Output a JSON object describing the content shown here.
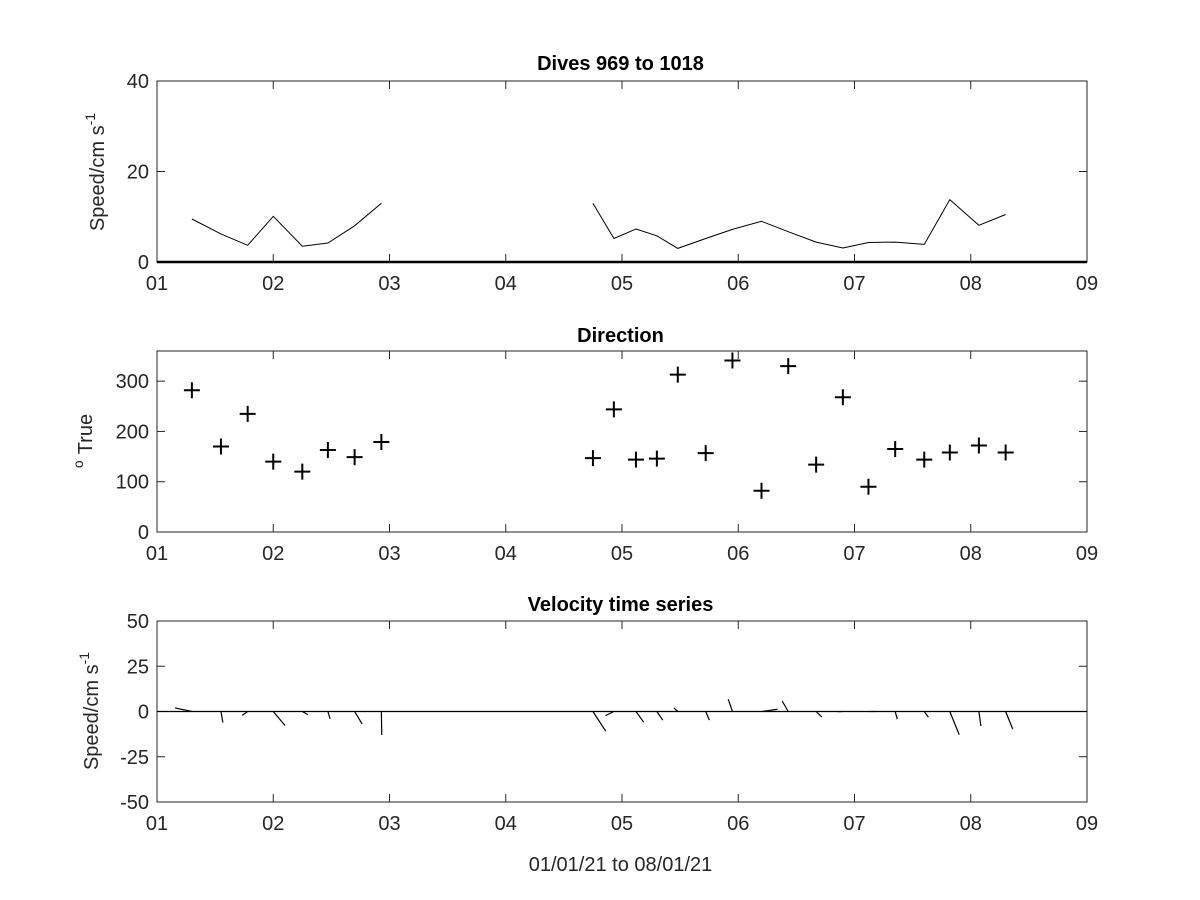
{
  "figure": {
    "xlabel": "01/01/21 to 08/01/21",
    "tick_labels": [
      "01",
      "02",
      "03",
      "04",
      "05",
      "06",
      "07",
      "08",
      "09"
    ]
  },
  "chart_data": [
    {
      "type": "line",
      "title": "Dives 969 to 1018",
      "ylabel": "Speed/cm s",
      "ylabel_superscript": "-1",
      "xlim": [
        1,
        9
      ],
      "ylim": [
        0,
        40
      ],
      "yticks": [
        "0",
        "20",
        "40"
      ],
      "grid": false,
      "series": [
        {
          "segments": [
            {
              "x": [
                1.3,
                1.55,
                1.78,
                2.0,
                2.25,
                2.47,
                2.7,
                2.93
              ],
              "y": [
                9.5,
                6.2,
                3.7,
                10.1,
                3.5,
                4.2,
                8.0,
                13.0
              ]
            },
            {
              "x": [
                4.75,
                4.93,
                5.12,
                5.3,
                5.48,
                5.72,
                5.95,
                6.2,
                6.43,
                6.67,
                6.9,
                7.12,
                7.35,
                7.6,
                7.82,
                8.07,
                8.3
              ],
              "y": [
                13.0,
                5.2,
                7.3,
                5.8,
                3.0,
                5.2,
                7.2,
                9.0,
                6.7,
                4.4,
                3.1,
                4.3,
                4.4,
                3.9,
                13.8,
                8.1,
                10.5
              ]
            }
          ]
        }
      ]
    },
    {
      "type": "scatter",
      "title": "Direction",
      "ylabel": "True",
      "ylabel_superscript": "o",
      "xlim": [
        1,
        9
      ],
      "ylim": [
        0,
        360
      ],
      "yticks": [
        "0",
        "100",
        "200",
        "300"
      ],
      "marker": "+",
      "grid": false,
      "x": [
        1.3,
        1.55,
        1.78,
        2.0,
        2.25,
        2.47,
        2.7,
        2.93,
        4.75,
        4.93,
        5.12,
        5.3,
        5.48,
        5.72,
        5.95,
        6.2,
        6.43,
        6.67,
        6.9,
        7.12,
        7.35,
        7.6,
        7.82,
        8.07,
        8.3
      ],
      "y": [
        282,
        170,
        235,
        140,
        120,
        163,
        149,
        179,
        147,
        244,
        144,
        146,
        313,
        157,
        341,
        82,
        330,
        134,
        268,
        90,
        165,
        144,
        158,
        172,
        158
      ]
    },
    {
      "type": "quiver",
      "title": "Velocity time series",
      "ylabel": "Speed/cm s",
      "ylabel_superscript": "-1",
      "xlim": [
        1,
        9
      ],
      "ylim": [
        -50,
        50
      ],
      "yticks": [
        "-50",
        "-25",
        "0",
        "25",
        "50"
      ],
      "grid": false,
      "x": [
        1.3,
        1.55,
        1.78,
        2.0,
        2.25,
        2.47,
        2.7,
        2.93,
        4.75,
        4.93,
        5.12,
        5.3,
        5.48,
        5.72,
        5.95,
        6.2,
        6.43,
        6.67,
        6.9,
        7.12,
        7.35,
        7.6,
        7.82,
        8.07,
        8.3
      ],
      "speed": [
        9.5,
        6.2,
        3.7,
        10.1,
        3.5,
        4.2,
        8.0,
        13.0,
        13.0,
        5.2,
        7.3,
        5.8,
        3.0,
        5.2,
        7.2,
        9.0,
        6.7,
        4.4,
        3.1,
        4.3,
        4.4,
        3.9,
        13.8,
        8.1,
        10.5
      ],
      "direction_deg_true": [
        282,
        170,
        235,
        140,
        120,
        163,
        149,
        179,
        147,
        244,
        144,
        146,
        313,
        157,
        341,
        82,
        330,
        134,
        268,
        90,
        165,
        144,
        158,
        172,
        158
      ]
    }
  ]
}
